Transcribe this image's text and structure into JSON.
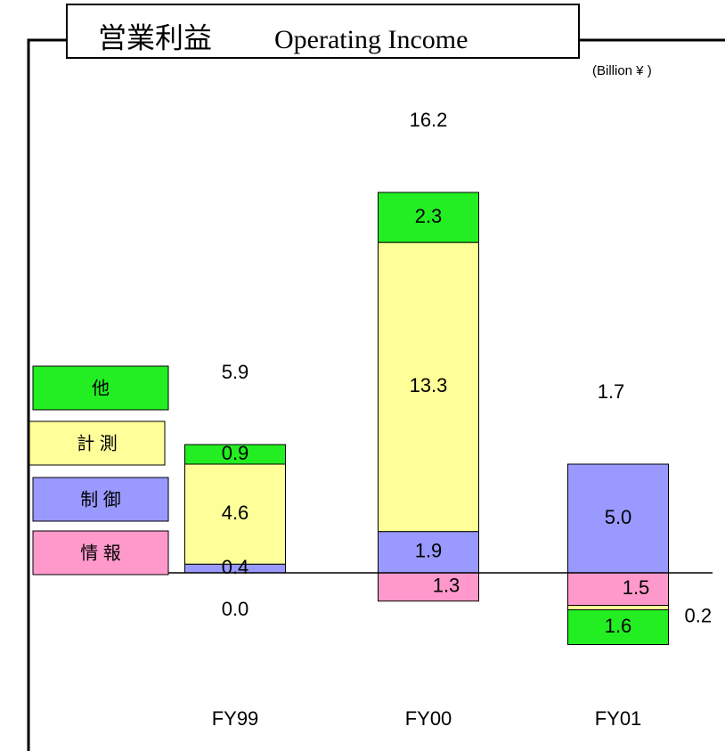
{
  "chart_data": {
    "type": "stacked_bar",
    "title_ja": "営業利益",
    "title_en": "Operating Income",
    "unit": "(Billion ¥ )",
    "categories": [
      "FY99",
      "FY00",
      "FY01"
    ],
    "series": [
      {
        "name": "情 報",
        "color": "#ff99cc",
        "values": [
          0.0,
          -1.3,
          -1.5
        ],
        "value_labels": [
          "0.0",
          "1.3",
          "1.5"
        ]
      },
      {
        "name": "制 御",
        "color": "#9999ff",
        "values": [
          0.4,
          1.9,
          5.0
        ],
        "value_labels": [
          "0.4",
          "1.9",
          "5.0"
        ]
      },
      {
        "name": "計 測",
        "color": "#ffff99",
        "values": [
          4.6,
          13.3,
          -0.2
        ],
        "value_labels": [
          "4.6",
          "13.3",
          "0.2"
        ]
      },
      {
        "name": "他",
        "color": "#22ee22",
        "values": [
          0.9,
          2.3,
          -1.6
        ],
        "value_labels": [
          "0.9",
          "2.3",
          "1.6"
        ]
      }
    ],
    "totals": [
      5.9,
      16.2,
      1.7
    ]
  }
}
